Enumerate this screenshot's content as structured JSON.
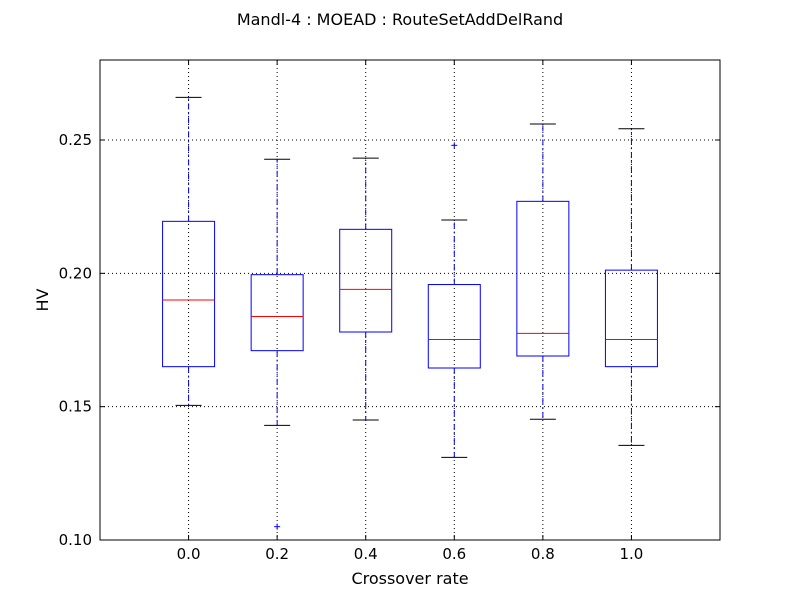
{
  "chart_data": {
    "type": "boxplot",
    "title": "Mandl-4 : MOEAD : RouteSetAddDelRand",
    "xlabel": "Crossover rate",
    "ylabel": "HV",
    "ylim": [
      0.1,
      0.28
    ],
    "yticks": [
      "0.10",
      "0.15",
      "0.20",
      "0.25"
    ],
    "ytick_values": [
      0.1,
      0.15,
      0.2,
      0.25
    ],
    "grid": true,
    "colors": {
      "box": "#0000ff",
      "median": "#ff0000",
      "whisker_cap": "#000000",
      "grid": "#000000"
    },
    "boxes": [
      {
        "label": "0.0",
        "whislo": 0.1505,
        "q1": 0.165,
        "med": 0.19,
        "q3": 0.2195,
        "whishi": 0.266,
        "fliers": []
      },
      {
        "label": "0.2",
        "whislo": 0.143,
        "q1": 0.171,
        "med": 0.1838,
        "q3": 0.1995,
        "whishi": 0.2428,
        "fliers": [
          0.105
        ]
      },
      {
        "label": "0.4",
        "whislo": 0.145,
        "q1": 0.178,
        "med": 0.194,
        "q3": 0.2165,
        "whishi": 0.2432,
        "fliers": []
      },
      {
        "label": "0.6",
        "whislo": 0.131,
        "q1": 0.1645,
        "med": 0.1752,
        "q3": 0.1958,
        "whishi": 0.22,
        "fliers": [
          0.248
        ]
      },
      {
        "label": "0.8",
        "whislo": 0.1453,
        "q1": 0.169,
        "med": 0.1775,
        "q3": 0.227,
        "whishi": 0.256,
        "fliers": []
      },
      {
        "label": "1.0",
        "whislo": 0.1355,
        "q1": 0.165,
        "med": 0.1752,
        "q3": 0.2012,
        "whishi": 0.2542,
        "fliers": []
      }
    ]
  }
}
